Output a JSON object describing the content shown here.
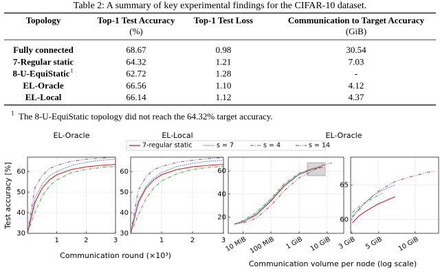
{
  "table": {
    "caption": "Table 2: A summary of key experimental findings for the CIFAR-10 dataset.",
    "header": [
      {
        "label": "Topology"
      },
      {
        "label": "Top-1 Test Accuracy",
        "unit": "(%)"
      },
      {
        "label": "Top-1 Test Loss"
      },
      {
        "label": "Communication to Target Accuracy",
        "unit": "(GiB)"
      }
    ],
    "rows": [
      {
        "topology": "Fully connected",
        "accuracy": "68.67",
        "loss": "0.98",
        "communication": "30.54"
      },
      {
        "topology": "7-Regular static",
        "accuracy": "64.32",
        "loss": "1.21",
        "communication": "7.03"
      },
      {
        "topology": "8-U-EquiStatic",
        "mark": "1",
        "accuracy": "62.72",
        "loss": "1.28",
        "communication": "-"
      },
      {
        "topology": "EL-Oracle",
        "accuracy": "66.56",
        "loss": "1.10",
        "communication": "4.12"
      },
      {
        "topology": "EL-Local",
        "accuracy": "66.14",
        "loss": "1.12",
        "communication": "4.37"
      }
    ],
    "footnote": {
      "mark": "1",
      "text": "The 8-U-EquiStatic topology did not reach the 64.32% target accuracy."
    }
  },
  "figure": {
    "ylabel": "Test accuracy [%]",
    "xlabels": [
      "Communication round (×10³)",
      "Communication volume per node (log scale)"
    ]
  },
  "charts": [
    {
      "type": "line",
      "title": "EL-Oracle",
      "x": [
        0,
        0.25,
        0.5,
        0.75,
        1,
        1.5,
        2,
        2.5,
        3
      ],
      "xlim": [
        0,
        3
      ],
      "xticks": [
        1,
        2,
        3
      ],
      "ylim": [
        30,
        67
      ],
      "yticks": [
        30,
        40,
        50,
        60
      ],
      "grid": true,
      "series": [
        {
          "name": "7-regular static",
          "color": "#e41a1c",
          "dash": "solid",
          "values": [
            30,
            45,
            52,
            56,
            58.5,
            61,
            62.3,
            63,
            63.5
          ]
        },
        {
          "name": "s = 7",
          "color": "#377eb8",
          "dash": "dot",
          "values": [
            30,
            47,
            54,
            58,
            60,
            63,
            64.5,
            65.5,
            66
          ]
        },
        {
          "name": "s = 4",
          "color": "#4daf4a",
          "dash": "dashdot",
          "values": [
            30,
            40,
            48,
            53,
            56,
            59.5,
            61,
            62,
            62.5
          ]
        },
        {
          "name": "s = 14",
          "color": "#984ea3",
          "dash": "dashdotdot",
          "values": [
            30,
            52,
            58,
            61.5,
            63,
            65,
            66,
            66.5,
            67
          ]
        }
      ]
    },
    {
      "type": "line",
      "title": "EL-Local",
      "x": [
        0,
        0.25,
        0.5,
        0.75,
        1,
        1.5,
        2,
        2.5,
        3
      ],
      "xlim": [
        0,
        3
      ],
      "xticks": [
        1,
        2,
        3
      ],
      "ylim": [
        30,
        67
      ],
      "yticks": [
        30,
        40,
        50,
        60
      ],
      "grid": true,
      "series": [
        {
          "name": "7-regular static",
          "color": "#e41a1c",
          "dash": "solid",
          "values": [
            30,
            45,
            52,
            56,
            58.5,
            61,
            62.3,
            63,
            63.5
          ]
        },
        {
          "name": "s = 7",
          "color": "#377eb8",
          "dash": "dot",
          "values": [
            30,
            46,
            53,
            57,
            59.5,
            62.5,
            64,
            65,
            65.5
          ]
        },
        {
          "name": "s = 4",
          "color": "#4daf4a",
          "dash": "dashdot",
          "values": [
            30,
            39,
            47,
            52,
            55.5,
            59,
            61,
            62,
            62.5
          ]
        },
        {
          "name": "s = 14",
          "color": "#984ea3",
          "dash": "dashdotdot",
          "values": [
            30,
            51,
            57.5,
            61,
            62.5,
            64.5,
            65.5,
            66.3,
            66.8
          ]
        }
      ]
    },
    {
      "type": "line",
      "title": "EL-Oracle",
      "log_x": true,
      "xlim": [
        3,
        40000
      ],
      "xticks": [
        {
          "value": 10,
          "label": "10 MiB"
        },
        {
          "value": 100,
          "label": "100 MiB"
        },
        {
          "value": 1024,
          "label": "1 GiB"
        },
        {
          "value": 10240,
          "label": "10 GiB"
        }
      ],
      "ylim": [
        6,
        72
      ],
      "yticks": [
        20,
        40,
        60
      ],
      "grid": true,
      "series": [
        {
          "name": "7-regular static",
          "color": "#e41a1c",
          "dash": "solid",
          "x": [
            5,
            10,
            30,
            100,
            300,
            1000,
            3000,
            7000
          ],
          "values": [
            14,
            16,
            22,
            34,
            47,
            57,
            62,
            63.3
          ]
        },
        {
          "name": "s = 7",
          "color": "#377eb8",
          "dash": "dot",
          "x": [
            5,
            10,
            30,
            100,
            300,
            1000,
            3000,
            7000
          ],
          "values": [
            14,
            16,
            23,
            35,
            48,
            57,
            61,
            65
          ]
        },
        {
          "name": "s = 4",
          "color": "#4daf4a",
          "dash": "dashdot",
          "x": [
            5,
            10,
            30,
            100,
            300,
            1000,
            3000,
            5500
          ],
          "values": [
            14,
            17,
            24,
            36,
            49,
            58,
            62,
            63.8
          ]
        },
        {
          "name": "s = 14",
          "color": "#984ea3",
          "dash": "dashdotdot",
          "x": [
            5,
            10,
            30,
            100,
            300,
            1000,
            3000,
            7000,
            15000
          ],
          "values": [
            14,
            15,
            19,
            30,
            43,
            54,
            60,
            65,
            67
          ]
        }
      ]
    },
    {
      "type": "line",
      "log_x": true,
      "xlim": [
        3000,
        16000
      ],
      "xticks": [
        {
          "value": 3072,
          "label": "3 GiB"
        },
        {
          "value": 5120,
          "label": "5 GiB"
        },
        {
          "value": 10240,
          "label": "10 GiB"
        }
      ],
      "ylim": [
        58,
        69
      ],
      "yticks": [
        60,
        65
      ],
      "grid": true,
      "series": [
        {
          "name": "7-regular static",
          "color": "#e41a1c",
          "dash": "solid",
          "x": [
            3100,
            3500,
            4000,
            5000,
            6000,
            7000
          ],
          "values": [
            59.5,
            60.5,
            61.2,
            62.2,
            62.8,
            63.3
          ]
        },
        {
          "name": "s = 7",
          "color": "#377eb8",
          "dash": "dot",
          "x": [
            3100,
            3500,
            4000,
            4500,
            5200,
            6000,
            7000
          ],
          "values": [
            60.5,
            61.5,
            62.5,
            63.3,
            64,
            64.5,
            65
          ]
        },
        {
          "name": "s = 4",
          "color": "#4daf4a",
          "dash": "dashdot",
          "x": [
            3100,
            3500,
            4000,
            4500,
            5500
          ],
          "values": [
            61,
            61.8,
            62.5,
            63,
            63.8
          ]
        },
        {
          "name": "s = 14",
          "color": "#984ea3",
          "dash": "dashdotdot",
          "x": [
            3100,
            4000,
            5000,
            7000,
            10000,
            13000,
            15000
          ],
          "values": [
            60.3,
            62.5,
            64,
            65.5,
            66.3,
            66.8,
            67
          ]
        }
      ]
    }
  ]
}
